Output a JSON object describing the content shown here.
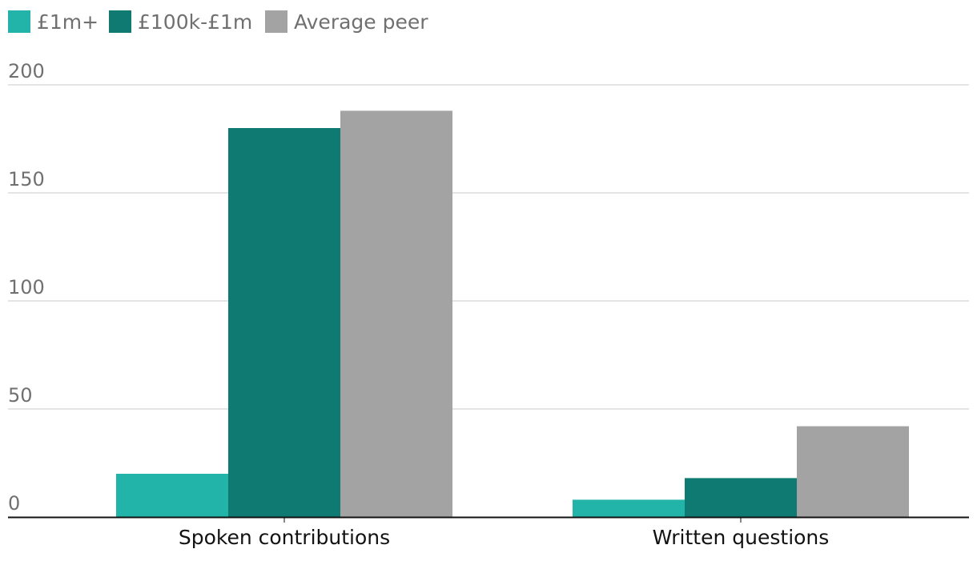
{
  "chart_data": {
    "type": "bar",
    "categories": [
      "Spoken contributions",
      "Written questions"
    ],
    "series": [
      {
        "name": "£1m+",
        "values": [
          20,
          8
        ],
        "color": "#22b4a8"
      },
      {
        "name": "£100k-£1m",
        "values": [
          180,
          18
        ],
        "color": "#0e7a72"
      },
      {
        "name": "Average peer",
        "values": [
          188,
          42
        ],
        "color": "#a3a3a3"
      }
    ],
    "yticks": [
      0,
      50,
      100,
      150,
      200
    ],
    "ylim": [
      0,
      200
    ],
    "grid": true,
    "legend": "top-left",
    "xlabel": "",
    "ylabel": ""
  }
}
